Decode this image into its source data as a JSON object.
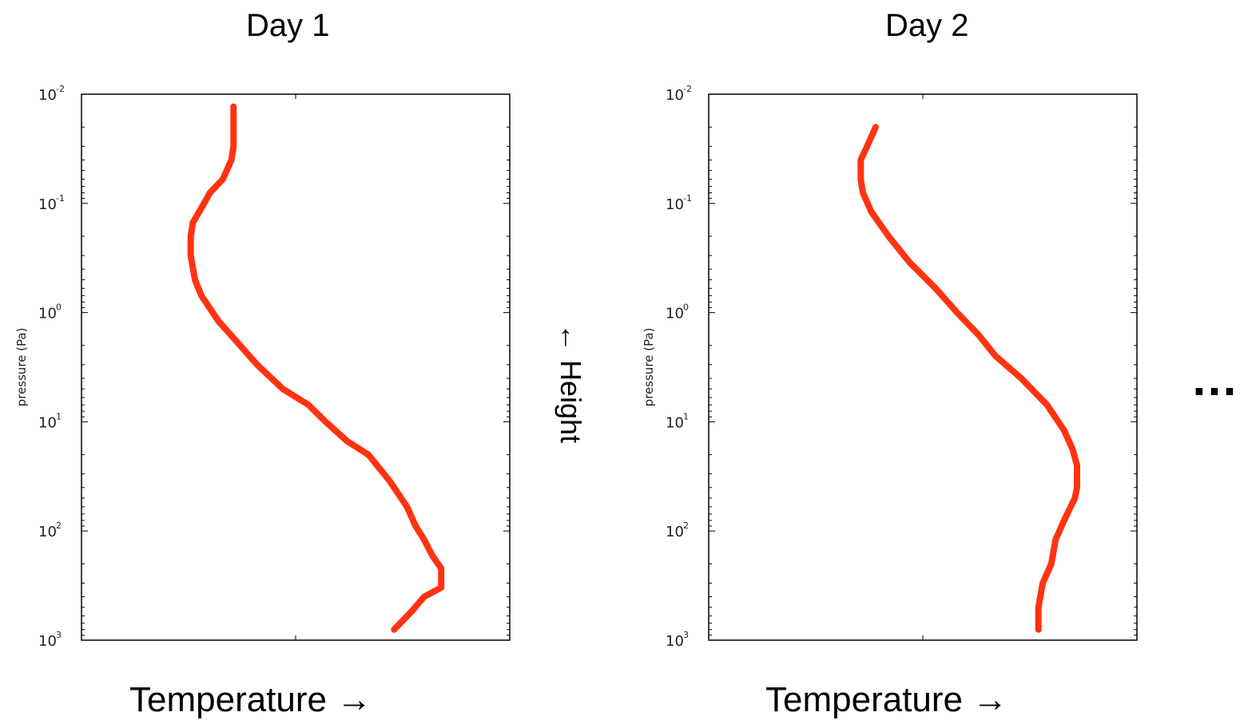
{
  "chart_data": [
    {
      "type": "line",
      "title": "Day 1",
      "xlabel": "Temperature →",
      "ylabel": "pressure (Pa)",
      "y_scale": "log",
      "y_inverted": true,
      "ylim": [
        0.01,
        1000
      ],
      "xlim": [
        0,
        1
      ],
      "yticks": [
        {
          "base": "10",
          "exp": "-2"
        },
        {
          "base": "10",
          "exp": "-1"
        },
        {
          "base": "10",
          "exp": "0"
        },
        {
          "base": "10",
          "exp": "1"
        },
        {
          "base": "10",
          "exp": "2"
        },
        {
          "base": "10",
          "exp": "3"
        }
      ],
      "color": "#ff3311",
      "series": [
        {
          "x": [
            0.355,
            0.355,
            0.35,
            0.33,
            0.3,
            0.28,
            0.26,
            0.255,
            0.255,
            0.265,
            0.28,
            0.32,
            0.36,
            0.41,
            0.47,
            0.53,
            0.57,
            0.62,
            0.67,
            0.72,
            0.76,
            0.78,
            0.8,
            0.82,
            0.84,
            0.84,
            0.8,
            0.77,
            0.73
          ],
          "y": [
            0.013,
            0.03,
            0.04,
            0.06,
            0.08,
            0.11,
            0.15,
            0.2,
            0.3,
            0.5,
            0.7,
            1.2,
            1.8,
            3,
            5,
            7,
            10,
            15,
            20,
            35,
            60,
            90,
            120,
            170,
            220,
            330,
            400,
            550,
            800
          ]
        }
      ]
    },
    {
      "type": "line",
      "title": "Day 2",
      "xlabel": "Temperature →",
      "ylabel": "pressure (Pa)",
      "y_scale": "log",
      "y_inverted": true,
      "ylim": [
        0.01,
        1000
      ],
      "xlim": [
        0,
        1
      ],
      "yticks": [
        {
          "base": "10",
          "exp": "-2"
        },
        {
          "base": "10",
          "exp": "-1"
        },
        {
          "base": "10",
          "exp": "0"
        },
        {
          "base": "10",
          "exp": "1"
        },
        {
          "base": "10",
          "exp": "2"
        },
        {
          "base": "10",
          "exp": "3"
        }
      ],
      "color": "#ff3311",
      "series": [
        {
          "x": [
            0.39,
            0.37,
            0.355,
            0.355,
            0.36,
            0.38,
            0.42,
            0.47,
            0.53,
            0.58,
            0.63,
            0.67,
            0.73,
            0.79,
            0.83,
            0.85,
            0.86,
            0.86,
            0.855,
            0.83,
            0.81,
            0.8,
            0.78,
            0.77,
            0.77
          ],
          "y": [
            0.02,
            0.03,
            0.04,
            0.06,
            0.08,
            0.12,
            0.2,
            0.35,
            0.6,
            1,
            1.6,
            2.5,
            4,
            7,
            12,
            18,
            25,
            40,
            50,
            80,
            120,
            200,
            300,
            500,
            800
          ]
        }
      ]
    }
  ],
  "side_label": "← Height",
  "ellipsis": "…"
}
